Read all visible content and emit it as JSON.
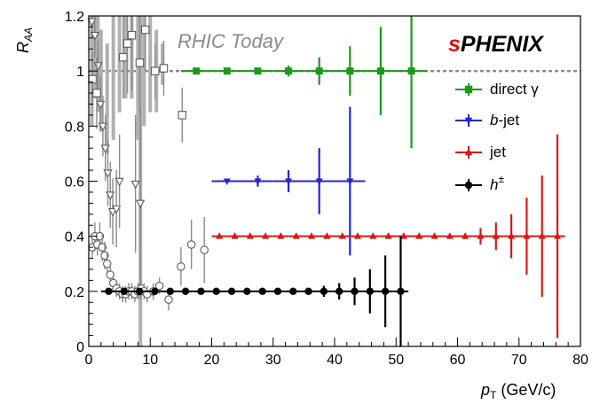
{
  "chart_data": {
    "type": "scatter",
    "ylabel_main": "R",
    "ylabel_sub": "AA",
    "xlabel_main": "p",
    "xlabel_sub": "T",
    "xlabel_unit": " (GeV/c)",
    "xlim": [
      0,
      80
    ],
    "ylim": [
      0,
      1.2
    ],
    "xticks": [
      "0",
      "10",
      "20",
      "30",
      "40",
      "50",
      "60",
      "70",
      "80"
    ],
    "yticks": [
      "0",
      "0.2",
      "0.4",
      "0.6",
      "0.8",
      "1",
      "1.2"
    ],
    "reference_line": 1.0,
    "annotation": "RHIC Today",
    "logo": {
      "prefix": "s",
      "main": "PHENIX"
    },
    "colors": {
      "direct_gamma": "#1a9a1a",
      "b_jet": "#2525d8",
      "jet": "#d81818",
      "hadron": "#000000",
      "rhic": "#8a8a8a",
      "logo_s": "#e01010"
    },
    "legend_placement": "right",
    "series": [
      {
        "name": "direct γ",
        "legend_label": "direct γ",
        "marker": "square",
        "key": "direct_gamma",
        "points": [
          {
            "x": 17.5,
            "y": 1.0,
            "err": 0.0
          },
          {
            "x": 22.5,
            "y": 1.0,
            "err": 0.0
          },
          {
            "x": 27.5,
            "y": 1.0,
            "err": 0.0
          },
          {
            "x": 32.5,
            "y": 1.0,
            "err": 0.02
          },
          {
            "x": 37.5,
            "y": 1.0,
            "err": 0.05
          },
          {
            "x": 42.5,
            "y": 1.0,
            "err": 0.09
          },
          {
            "x": 47.5,
            "y": 1.0,
            "err": 0.16
          },
          {
            "x": 52.5,
            "y": 1.0,
            "err": 0.28
          }
        ]
      },
      {
        "name": "b-jet",
        "legend_prefix": "b",
        "legend_suffix": "-jet",
        "marker": "triangle-down",
        "key": "b_jet",
        "points": [
          {
            "x": 22.5,
            "y": 0.6,
            "err": 0.0
          },
          {
            "x": 27.5,
            "y": 0.6,
            "err": 0.02
          },
          {
            "x": 32.5,
            "y": 0.6,
            "err": 0.04
          },
          {
            "x": 37.5,
            "y": 0.6,
            "err": 0.12
          },
          {
            "x": 42.5,
            "y": 0.6,
            "err": 0.27
          }
        ]
      },
      {
        "name": "jet",
        "legend_label": "jet",
        "marker": "triangle-up",
        "key": "jet",
        "points": [
          {
            "x": 21.25,
            "y": 0.4,
            "err": 0.0
          },
          {
            "x": 23.75,
            "y": 0.4,
            "err": 0.0
          },
          {
            "x": 26.25,
            "y": 0.4,
            "err": 0.0
          },
          {
            "x": 28.75,
            "y": 0.4,
            "err": 0.0
          },
          {
            "x": 31.25,
            "y": 0.4,
            "err": 0.0
          },
          {
            "x": 33.75,
            "y": 0.4,
            "err": 0.0
          },
          {
            "x": 36.25,
            "y": 0.4,
            "err": 0.0
          },
          {
            "x": 38.75,
            "y": 0.4,
            "err": 0.0
          },
          {
            "x": 41.25,
            "y": 0.4,
            "err": 0.0
          },
          {
            "x": 43.75,
            "y": 0.4,
            "err": 0.0
          },
          {
            "x": 46.25,
            "y": 0.4,
            "err": 0.0
          },
          {
            "x": 48.75,
            "y": 0.4,
            "err": 0.0
          },
          {
            "x": 51.25,
            "y": 0.4,
            "err": 0.0
          },
          {
            "x": 53.75,
            "y": 0.4,
            "err": 0.0
          },
          {
            "x": 56.25,
            "y": 0.4,
            "err": 0.0
          },
          {
            "x": 58.75,
            "y": 0.4,
            "err": 0.0
          },
          {
            "x": 61.25,
            "y": 0.4,
            "err": 0.01
          },
          {
            "x": 63.75,
            "y": 0.4,
            "err": 0.03
          },
          {
            "x": 66.25,
            "y": 0.4,
            "err": 0.05
          },
          {
            "x": 68.75,
            "y": 0.4,
            "err": 0.08
          },
          {
            "x": 71.25,
            "y": 0.4,
            "err": 0.14
          },
          {
            "x": 73.75,
            "y": 0.4,
            "err": 0.22
          },
          {
            "x": 76.25,
            "y": 0.4,
            "err": 0.37
          }
        ]
      },
      {
        "name": "h±",
        "legend_prefix": "h",
        "legend_sup": "±",
        "marker": "circle",
        "key": "hadron",
        "points": [
          {
            "x": 3.25,
            "y": 0.2,
            "err": 0.0
          },
          {
            "x": 5.75,
            "y": 0.2,
            "err": 0.0
          },
          {
            "x": 8.25,
            "y": 0.2,
            "err": 0.0
          },
          {
            "x": 10.75,
            "y": 0.2,
            "err": 0.0
          },
          {
            "x": 13.25,
            "y": 0.2,
            "err": 0.0
          },
          {
            "x": 15.75,
            "y": 0.2,
            "err": 0.0
          },
          {
            "x": 18.25,
            "y": 0.2,
            "err": 0.0
          },
          {
            "x": 20.75,
            "y": 0.2,
            "err": 0.0
          },
          {
            "x": 23.25,
            "y": 0.2,
            "err": 0.0
          },
          {
            "x": 25.75,
            "y": 0.2,
            "err": 0.0
          },
          {
            "x": 28.25,
            "y": 0.2,
            "err": 0.0
          },
          {
            "x": 30.75,
            "y": 0.2,
            "err": 0.0
          },
          {
            "x": 33.25,
            "y": 0.2,
            "err": 0.0
          },
          {
            "x": 35.75,
            "y": 0.2,
            "err": 0.0
          },
          {
            "x": 38.25,
            "y": 0.2,
            "err": 0.02
          },
          {
            "x": 40.75,
            "y": 0.2,
            "err": 0.03
          },
          {
            "x": 43.25,
            "y": 0.2,
            "err": 0.05
          },
          {
            "x": 45.75,
            "y": 0.2,
            "err": 0.08
          },
          {
            "x": 48.25,
            "y": 0.2,
            "err": 0.13
          },
          {
            "x": 50.75,
            "y": 0.2,
            "err": 0.2
          }
        ]
      }
    ],
    "rhic_today": {
      "description_series": "RHIC Today",
      "open_circles": [
        {
          "x": 0.6,
          "y": 0.36,
          "err": 0.04
        },
        {
          "x": 1.0,
          "y": 0.4,
          "err": 0.05
        },
        {
          "x": 1.4,
          "y": 0.37,
          "err": 0.04
        },
        {
          "x": 1.8,
          "y": 0.4,
          "err": 0.05
        },
        {
          "x": 2.2,
          "y": 0.36,
          "err": 0.05
        },
        {
          "x": 2.6,
          "y": 0.33,
          "err": 0.05
        },
        {
          "x": 3.0,
          "y": 0.3,
          "err": 0.04
        },
        {
          "x": 3.5,
          "y": 0.26,
          "err": 0.04
        },
        {
          "x": 4.0,
          "y": 0.23,
          "err": 0.03
        },
        {
          "x": 4.5,
          "y": 0.21,
          "err": 0.03
        },
        {
          "x": 5.0,
          "y": 0.2,
          "err": 0.03
        },
        {
          "x": 5.5,
          "y": 0.19,
          "err": 0.03
        },
        {
          "x": 6.0,
          "y": 0.19,
          "err": 0.03
        },
        {
          "x": 6.5,
          "y": 0.2,
          "err": 0.03
        },
        {
          "x": 7.0,
          "y": 0.2,
          "err": 0.03
        },
        {
          "x": 7.5,
          "y": 0.19,
          "err": 0.03
        },
        {
          "x": 8.0,
          "y": 0.2,
          "err": 0.03
        },
        {
          "x": 8.5,
          "y": 0.21,
          "err": 0.03
        },
        {
          "x": 9.0,
          "y": 0.2,
          "err": 0.03
        },
        {
          "x": 9.5,
          "y": 0.19,
          "err": 0.03
        },
        {
          "x": 10.5,
          "y": 0.2,
          "err": 0.03
        },
        {
          "x": 11.5,
          "y": 0.22,
          "err": 0.03
        },
        {
          "x": 13.0,
          "y": 0.17,
          "err": 0.04
        },
        {
          "x": 15.0,
          "y": 0.29,
          "err": 0.07
        },
        {
          "x": 16.7,
          "y": 0.37,
          "err": 0.09
        },
        {
          "x": 18.8,
          "y": 0.35,
          "err": 0.12
        }
      ],
      "open_triangles": [
        {
          "x": 0.5,
          "y": 1.18,
          "err": 0.06
        },
        {
          "x": 1.0,
          "y": 1.13,
          "err": 0.08
        },
        {
          "x": 1.5,
          "y": 1.02,
          "err": 0.09
        },
        {
          "x": 1.9,
          "y": 0.88,
          "err": 0.1
        },
        {
          "x": 2.3,
          "y": 0.8,
          "err": 0.11
        },
        {
          "x": 2.7,
          "y": 0.72,
          "err": 0.12
        },
        {
          "x": 3.1,
          "y": 0.63,
          "err": 0.12
        },
        {
          "x": 3.5,
          "y": 0.55,
          "err": 0.12
        },
        {
          "x": 3.9,
          "y": 0.49,
          "err": 0.12
        },
        {
          "x": 4.5,
          "y": 0.5,
          "err": 0.14
        },
        {
          "x": 5.0,
          "y": 0.6,
          "err": 0.17
        },
        {
          "x": 7.6,
          "y": 0.59,
          "err": 0.25
        },
        {
          "x": 8.4,
          "y": 0.52,
          "err": 0.35
        }
      ],
      "open_squares": [
        {
          "x": 0.6,
          "y": 0.97,
          "err": 0.1
        },
        {
          "x": 1.3,
          "y": 0.92,
          "err": 0.13
        },
        {
          "x": 5.6,
          "y": 1.05,
          "err": 0.15
        },
        {
          "x": 6.3,
          "y": 1.1,
          "err": 0.18
        },
        {
          "x": 7.0,
          "y": 1.13,
          "err": 0.2
        },
        {
          "x": 8.3,
          "y": 1.03,
          "err": 0.18
        },
        {
          "x": 9.2,
          "y": 1.15,
          "err": 0.15
        },
        {
          "x": 10.8,
          "y": 1.0,
          "err": 0.1
        },
        {
          "x": 12.2,
          "y": 1.01,
          "err": 0.1
        },
        {
          "x": 15.2,
          "y": 0.84,
          "err": 0.1
        }
      ],
      "grey_bands": [
        {
          "x": 0.5,
          "lo": 0.8,
          "hi": 1.2
        },
        {
          "x": 1.0,
          "lo": 0.9,
          "hi": 1.2
        },
        {
          "x": 1.5,
          "lo": 0.85,
          "hi": 1.2
        },
        {
          "x": 2.0,
          "lo": 0.78,
          "hi": 1.15
        },
        {
          "x": 3.0,
          "lo": 0.7,
          "hi": 1.1
        },
        {
          "x": 4.0,
          "lo": 0.75,
          "hi": 1.2
        },
        {
          "x": 5.0,
          "lo": 0.85,
          "hi": 1.2
        },
        {
          "x": 6.0,
          "lo": 0.9,
          "hi": 1.2
        },
        {
          "x": 7.0,
          "lo": 0.9,
          "hi": 1.2
        },
        {
          "x": 8.0,
          "lo": 0.75,
          "hi": 1.2
        },
        {
          "x": 9.0,
          "lo": 0.8,
          "hi": 1.2
        },
        {
          "x": 10.0,
          "lo": 0.85,
          "hi": 1.2
        },
        {
          "x": 11.0,
          "lo": 0.85,
          "hi": 1.15
        },
        {
          "x": 12.0,
          "lo": 0.95,
          "hi": 1.1
        },
        {
          "x": 8.4,
          "lo": 0.0,
          "hi": 1.2
        }
      ]
    }
  }
}
